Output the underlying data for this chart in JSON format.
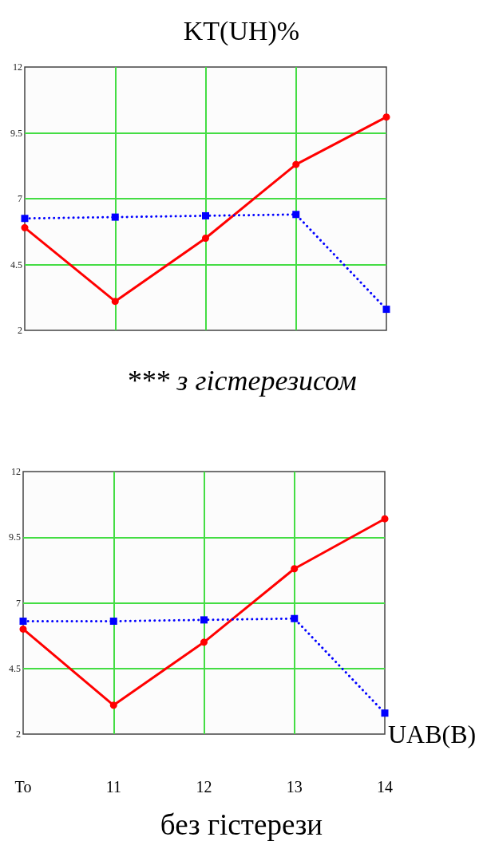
{
  "chart_data": [
    {
      "type": "line",
      "title": "KT(UH)%",
      "categories": [
        null,
        null,
        null,
        null,
        null
      ],
      "series": [
        {
          "color": "#ff0000",
          "values": [
            5.9,
            3.1,
            5.5,
            8.3,
            10.1
          ],
          "marker": "circle",
          "line_style": "solid"
        },
        {
          "color": "#0000ff",
          "values": [
            6.25,
            6.3,
            6.35,
            6.4,
            2.8
          ],
          "marker": "square",
          "line_style": "dotted"
        }
      ],
      "ylim": [
        2,
        12
      ],
      "yticks": [
        2,
        4.5,
        7,
        9.5,
        12
      ],
      "grid": true,
      "annotations": [
        "*** з гістерезисом"
      ]
    },
    {
      "type": "line",
      "xlabel": "UAB(B)",
      "categories": [
        "To",
        "11",
        "12",
        "13",
        "14"
      ],
      "series": [
        {
          "color": "#ff0000",
          "values": [
            6.0,
            3.1,
            5.5,
            8.3,
            10.2
          ],
          "marker": "circle",
          "line_style": "solid"
        },
        {
          "color": "#0000ff",
          "values": [
            6.3,
            6.3,
            6.35,
            6.4,
            2.8
          ],
          "marker": "square",
          "line_style": "dotted"
        }
      ],
      "ylim": [
        2,
        12
      ],
      "yticks": [
        2,
        4.5,
        7,
        9.5,
        12
      ],
      "grid": true,
      "annotations": [
        "без гістерези"
      ]
    }
  ]
}
